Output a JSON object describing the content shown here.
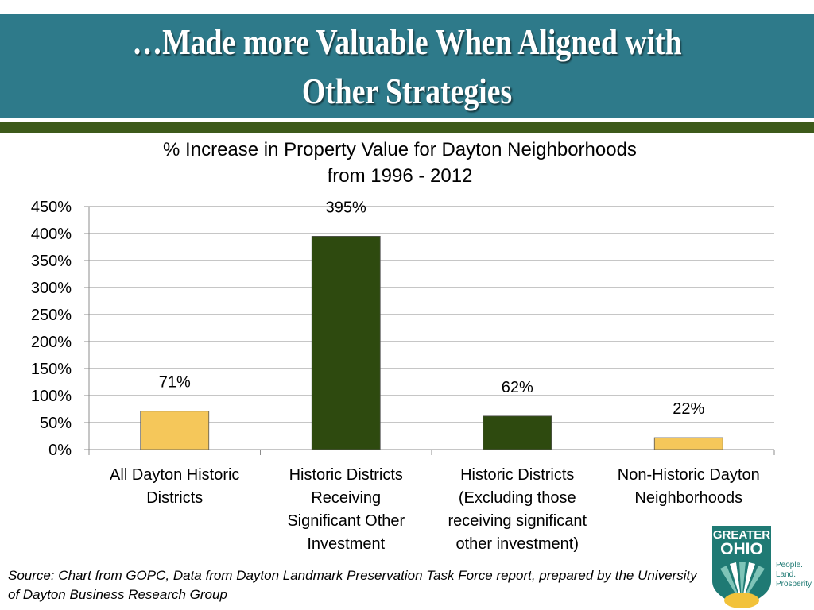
{
  "header": {
    "title": "…Made more Valuable When Aligned with Other Strategies"
  },
  "colors": {
    "header_band": "#2e7a8a",
    "accent_rule": "#3d5a1a",
    "bar_light": "#f5c75a",
    "bar_dark": "#2e4a0f"
  },
  "chart_data": {
    "type": "bar",
    "title_lines": [
      "% Increase in Property Value for Dayton Neighborhoods",
      "from 1996 - 2012"
    ],
    "categories": [
      [
        "All Dayton Historic",
        "Districts"
      ],
      [
        "Historic Districts",
        "Receiving",
        "Significant Other",
        "Investment"
      ],
      [
        "Historic Districts",
        "(Excluding those",
        "receiving significant",
        "other investment)"
      ],
      [
        "Non-Historic Dayton",
        "Neighborhoods"
      ]
    ],
    "values": [
      71,
      395,
      62,
      22
    ],
    "data_labels": [
      "71%",
      "395%",
      "62%",
      "22%"
    ],
    "bar_colors": [
      "#f5c75a",
      "#2e4a0f",
      "#2e4a0f",
      "#f5c75a"
    ],
    "ylim": [
      0,
      450
    ],
    "yticks": [
      0,
      50,
      100,
      150,
      200,
      250,
      300,
      350,
      400,
      450
    ],
    "ytick_labels": [
      "0%",
      "50%",
      "100%",
      "150%",
      "200%",
      "250%",
      "300%",
      "350%",
      "400%",
      "450%"
    ],
    "grid": true,
    "legend": "none"
  },
  "source": {
    "text": "Source: Chart from GOPC, Data from Dayton Landmark Preservation Task Force report, prepared by the University of Dayton Business Research Group"
  },
  "logo": {
    "line1": "GREATER",
    "line2": "OHIO",
    "tagline": [
      "People.",
      "Land.",
      "Prosperity."
    ]
  }
}
